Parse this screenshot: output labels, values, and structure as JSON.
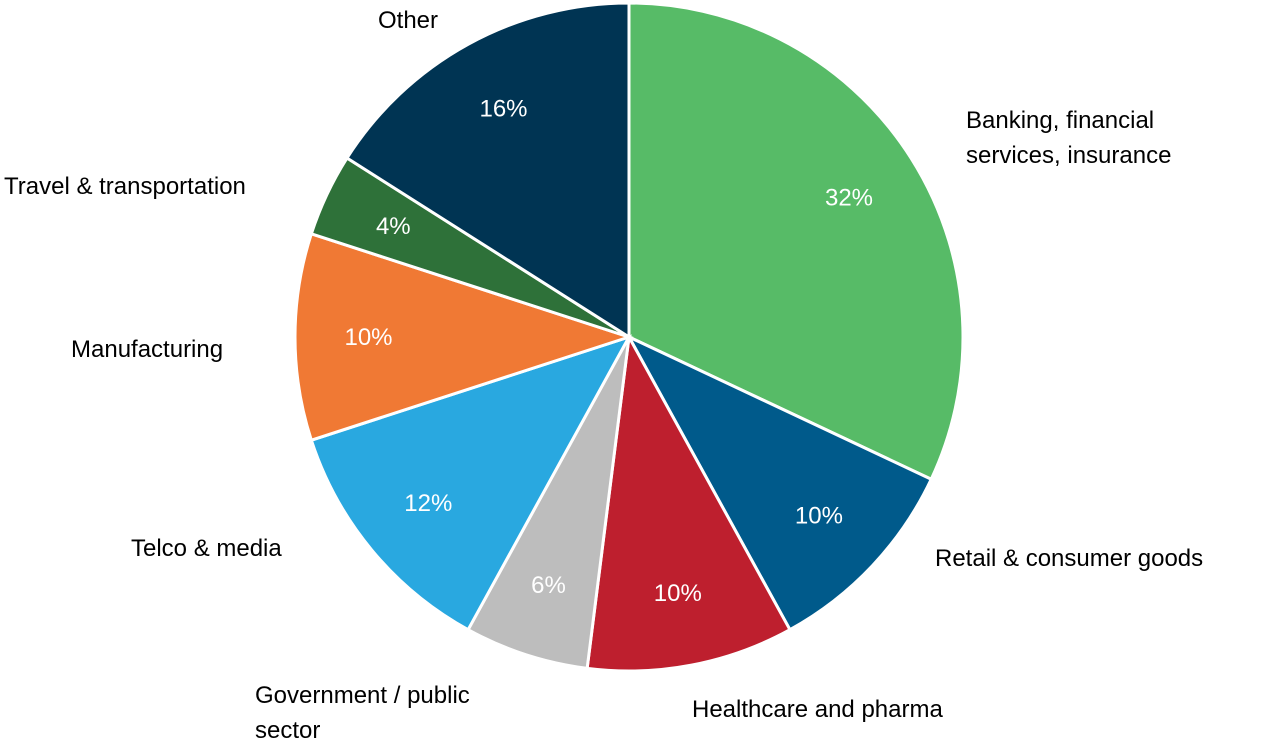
{
  "chart_data": {
    "type": "pie",
    "title": "",
    "start": "12 o'clock",
    "direction": "clockwise",
    "slices": [
      {
        "label": "Banking, financial services, insurance",
        "value": 32,
        "value_label": "32%",
        "color": "#57bb67"
      },
      {
        "label": "Retail & consumer goods",
        "value": 10,
        "value_label": "10%",
        "color": "#005a8b"
      },
      {
        "label": "Healthcare and pharma",
        "value": 10,
        "value_label": "10%",
        "color": "#be1f2e"
      },
      {
        "label": "Government / public sector",
        "value": 6,
        "value_label": "6%",
        "color": "#bdbdbd"
      },
      {
        "label": "Telco & media",
        "value": 12,
        "value_label": "12%",
        "color": "#29a8e0"
      },
      {
        "label": "Manufacturing",
        "value": 10,
        "value_label": "10%",
        "color": "#f07934"
      },
      {
        "label": "Travel & transportation",
        "value": 4,
        "value_label": "4%",
        "color": "#2e7139"
      },
      {
        "label": "Other",
        "value": 16,
        "value_label": "16%",
        "color": "#003453"
      }
    ]
  }
}
